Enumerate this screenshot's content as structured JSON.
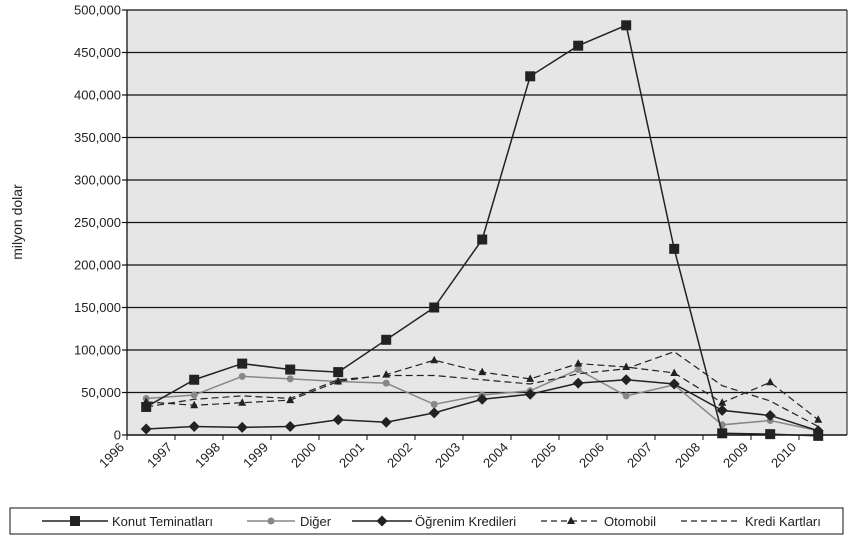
{
  "chart_data": {
    "type": "line",
    "ylabel": "milyon dolar",
    "ylim": [
      0,
      500000
    ],
    "yticks": [
      "0",
      "50,000",
      "100,000",
      "150,000",
      "200,000",
      "250,000",
      "300,000",
      "350,000",
      "400,000",
      "450,000",
      "500,000"
    ],
    "categories": [
      "1996",
      "1997",
      "1998",
      "1999",
      "2000",
      "2001",
      "2002",
      "2003",
      "2004",
      "2005",
      "2006",
      "2007",
      "2008",
      "2009",
      "2010"
    ],
    "grid": "horizontal",
    "background": "#e6e6e6",
    "legend_position": "bottom",
    "series": [
      {
        "name": "Konut Teminatları",
        "style": "solid",
        "marker": "square",
        "color": "#222222",
        "values": [
          33000,
          65000,
          84000,
          77000,
          74000,
          112000,
          150000,
          230000,
          422000,
          458000,
          482000,
          219000,
          2000,
          1000,
          -1000
        ]
      },
      {
        "name": "Diğer",
        "style": "solid",
        "marker": "circle",
        "color": "#888888",
        "values": [
          43000,
          47000,
          69000,
          66000,
          63000,
          61000,
          36000,
          47000,
          52000,
          77000,
          46000,
          59000,
          12000,
          17000,
          5000
        ]
      },
      {
        "name": "Öğrenim Kredileri",
        "style": "solid",
        "marker": "diamond",
        "color": "#222222",
        "values": [
          7000,
          10000,
          9000,
          10000,
          18000,
          15000,
          26000,
          42000,
          48000,
          61000,
          65000,
          60000,
          29000,
          23000,
          5000
        ]
      },
      {
        "name": "Otomobil",
        "style": "dashed",
        "marker": "triangle",
        "color": "#222222",
        "values": [
          39000,
          35000,
          38000,
          41000,
          63000,
          71000,
          88000,
          74000,
          66000,
          84000,
          80000,
          73000,
          38000,
          62000,
          18000
        ]
      },
      {
        "name": "Kredi Kartları",
        "style": "dashed",
        "marker": "none",
        "color": "#222222",
        "values": [
          33000,
          42000,
          46000,
          43000,
          65000,
          70000,
          70000,
          65000,
          60000,
          72000,
          78000,
          98000,
          58000,
          40000,
          10000
        ]
      }
    ]
  }
}
